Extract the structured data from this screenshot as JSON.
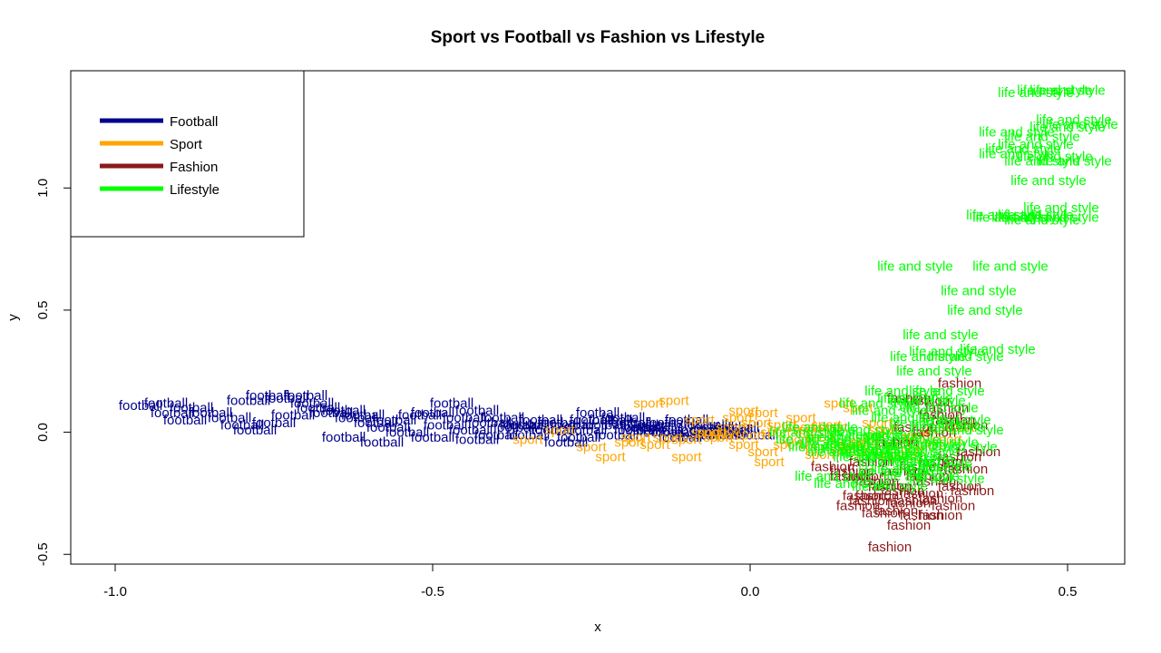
{
  "chart_data": {
    "type": "scatter",
    "title": "Sport vs Football vs Fashion vs Lifestyle",
    "xlabel": "x",
    "ylabel": "y",
    "xlim": [
      -1.07,
      0.59
    ],
    "ylim": [
      -0.54,
      1.48
    ],
    "xticks": [
      -1.0,
      -0.5,
      0.0,
      0.5
    ],
    "xtick_labels": [
      "-1.0",
      "-0.5",
      "0.0",
      "0.5"
    ],
    "yticks": [
      -0.5,
      0.0,
      0.5,
      1.0
    ],
    "ytick_labels": [
      "-0.5",
      "0.0",
      "0.5",
      "1.0"
    ],
    "grid": false,
    "legend_position": "top-left",
    "legend": [
      {
        "label": "Football",
        "color": "#00008B"
      },
      {
        "label": "Sport",
        "color": "#FFA500"
      },
      {
        "label": "Fashion",
        "color": "#8B1A1A"
      },
      {
        "label": "Lifestyle",
        "color": "#00FF00"
      }
    ],
    "series": [
      {
        "name": "Football",
        "point_label": "football",
        "color": "#00008B",
        "x": [
          -0.96,
          -0.92,
          -0.88,
          -0.85,
          -0.79,
          -0.76,
          -0.73,
          -0.7,
          -0.66,
          -0.62,
          -0.57,
          -0.52,
          -0.47,
          -0.43,
          -0.39,
          -0.35,
          -0.3,
          -0.26,
          -0.22,
          -0.18,
          -0.15,
          -0.12,
          -0.09,
          -0.06,
          -0.03,
          -0.91,
          -0.82,
          -0.75,
          -0.68,
          -0.61,
          -0.56,
          -0.5,
          -0.45,
          -0.41,
          -0.37,
          -0.33,
          -0.28,
          -0.24,
          -0.2,
          -0.16,
          -0.13,
          -0.1,
          -0.07,
          -0.04,
          -0.89,
          -0.8,
          -0.72,
          -0.64,
          -0.59,
          -0.54,
          -0.48,
          -0.44,
          -0.4,
          -0.36,
          -0.31,
          -0.27,
          -0.23,
          -0.19,
          -0.14,
          -0.11,
          -0.08,
          -0.05,
          -0.02,
          -0.64,
          -0.58,
          -0.5,
          -0.43,
          -0.35,
          -0.29,
          -0.25,
          -0.21,
          -0.17,
          0.01,
          -0.78,
          -0.69
        ],
        "y": [
          0.11,
          0.12,
          0.1,
          0.08,
          0.13,
          0.15,
          0.14,
          0.15,
          0.08,
          0.06,
          0.02,
          0.07,
          0.12,
          0.09,
          0.06,
          0.03,
          0.04,
          0.01,
          0.05,
          0.01,
          0.03,
          0.0,
          -0.01,
          0.02,
          0.01,
          0.08,
          0.06,
          0.04,
          0.1,
          0.07,
          0.05,
          0.08,
          0.06,
          0.04,
          0.02,
          0.05,
          0.03,
          0.08,
          0.06,
          0.02,
          0.04,
          0.05,
          0.03,
          0.0,
          0.05,
          0.03,
          0.07,
          0.09,
          0.04,
          0.0,
          0.03,
          0.01,
          -0.01,
          0.03,
          0.01,
          -0.02,
          0.03,
          0.04,
          0.0,
          -0.02,
          0.01,
          -0.01,
          0.02,
          -0.02,
          -0.04,
          -0.02,
          -0.03,
          -0.01,
          -0.04,
          0.05,
          -0.01,
          0.02,
          -0.01,
          0.01,
          0.12
        ]
      },
      {
        "name": "Sport",
        "point_label": "sport",
        "color": "#FFA500",
        "x": [
          -0.16,
          -0.12,
          -0.22,
          -0.18,
          -0.15,
          -0.1,
          -0.07,
          -0.04,
          -0.01,
          0.02,
          0.05,
          0.08,
          0.11,
          0.14,
          0.17,
          0.2,
          0.23,
          0.26,
          0.29,
          -0.05,
          -0.02,
          0.01,
          0.04,
          0.07,
          0.1,
          0.13,
          0.16,
          0.19,
          0.22,
          0.25,
          0.28,
          0.31,
          0.33,
          -0.1,
          -0.08,
          -0.03,
          0.0,
          0.03,
          0.06,
          0.09,
          0.12,
          0.15,
          0.18,
          0.21,
          0.24,
          -0.13,
          -0.19,
          -0.25,
          -0.3,
          -0.35,
          -0.06,
          -0.01,
          0.02,
          0.08,
          0.11,
          0.15,
          0.18,
          0.26
        ],
        "y": [
          0.12,
          0.13,
          -0.1,
          -0.02,
          -0.05,
          -0.03,
          0.0,
          -0.01,
          0.09,
          0.08,
          0.03,
          0.02,
          -0.02,
          0.12,
          0.1,
          0.04,
          -0.05,
          -0.01,
          0.01,
          -0.02,
          0.06,
          0.04,
          0.0,
          -0.03,
          -0.06,
          0.02,
          -0.04,
          -0.02,
          -0.09,
          -0.07,
          -0.05,
          -0.03,
          0.02,
          -0.1,
          0.05,
          0.02,
          -0.01,
          -0.12,
          -0.05,
          0.01,
          0.03,
          -0.06,
          -0.08,
          0.01,
          -0.1,
          -0.02,
          -0.04,
          -0.06,
          0.01,
          -0.03,
          0.0,
          -0.05,
          -0.08,
          0.06,
          -0.09,
          -0.07,
          -0.04,
          -0.02
        ]
      },
      {
        "name": "Fashion",
        "point_label": "fashion",
        "color": "#8B1A1A",
        "x": [
          0.22,
          0.25,
          0.27,
          0.3,
          0.32,
          0.35,
          0.33,
          0.29,
          0.26,
          0.23,
          0.21,
          0.19,
          0.17,
          0.2,
          0.24,
          0.28,
          0.31,
          0.34,
          0.3,
          0.27,
          0.25,
          0.22,
          0.2,
          0.18,
          0.16,
          0.24,
          0.27,
          0.3,
          0.33,
          0.36,
          0.29,
          0.26,
          0.23,
          0.3,
          0.32,
          0.34,
          0.28,
          0.25,
          0.31,
          0.33,
          0.13,
          0.16,
          0.19,
          0.22,
          0.18
        ],
        "y": [
          -0.47,
          -0.38,
          -0.34,
          -0.34,
          -0.3,
          -0.24,
          -0.22,
          -0.2,
          -0.28,
          -0.32,
          -0.33,
          -0.28,
          -0.3,
          -0.26,
          -0.24,
          -0.18,
          -0.14,
          -0.15,
          -0.27,
          -0.25,
          -0.29,
          -0.22,
          -0.2,
          -0.18,
          -0.16,
          -0.16,
          -0.14,
          -0.12,
          -0.1,
          -0.08,
          0.0,
          0.02,
          -0.04,
          0.07,
          0.05,
          0.03,
          0.13,
          0.14,
          0.1,
          0.2,
          -0.14,
          -0.18,
          -0.12,
          -0.22,
          -0.26
        ]
      },
      {
        "name": "Lifestyle",
        "point_label": "life and style",
        "color": "#00FF00",
        "x": [
          0.45,
          0.48,
          0.5,
          0.51,
          0.52,
          0.42,
          0.46,
          0.5,
          0.45,
          0.43,
          0.42,
          0.46,
          0.48,
          0.51,
          0.47,
          0.49,
          0.45,
          0.4,
          0.41,
          0.44,
          0.46,
          0.49,
          0.26,
          0.41,
          0.36,
          0.37,
          0.3,
          0.31,
          0.39,
          0.28,
          0.34,
          0.29,
          0.31,
          0.24,
          0.26,
          0.28,
          0.3,
          0.32,
          0.2,
          0.22,
          0.25,
          0.28,
          0.31,
          0.34,
          0.18,
          0.21,
          0.24,
          0.27,
          0.3,
          0.33,
          0.15,
          0.18,
          0.21,
          0.24,
          0.27,
          0.12,
          0.15,
          0.19,
          0.23,
          0.26,
          0.29,
          0.1,
          0.14,
          0.17,
          0.2,
          0.23,
          0.27,
          0.31,
          0.13,
          0.16,
          0.22,
          0.25,
          0.29,
          0.09,
          0.11,
          0.18
        ],
        "y": [
          1.39,
          1.4,
          1.4,
          1.28,
          1.26,
          1.23,
          1.21,
          1.25,
          1.18,
          1.16,
          1.14,
          1.11,
          1.13,
          1.11,
          1.03,
          0.92,
          0.89,
          0.89,
          0.88,
          0.88,
          0.87,
          0.88,
          0.68,
          0.68,
          0.58,
          0.5,
          0.4,
          0.33,
          0.34,
          0.31,
          0.31,
          0.25,
          0.17,
          0.17,
          0.14,
          0.13,
          0.1,
          0.05,
          0.12,
          0.09,
          0.06,
          0.04,
          0.02,
          0.01,
          0.01,
          -0.01,
          -0.03,
          -0.05,
          -0.04,
          -0.06,
          -0.02,
          -0.05,
          -0.07,
          -0.09,
          -0.08,
          -0.06,
          -0.08,
          -0.1,
          -0.12,
          -0.11,
          -0.14,
          -0.03,
          -0.05,
          -0.07,
          -0.09,
          -0.16,
          -0.18,
          -0.19,
          -0.18,
          -0.21,
          -0.22,
          -0.15,
          -0.12,
          0.0,
          0.02,
          -0.01
        ]
      }
    ]
  }
}
